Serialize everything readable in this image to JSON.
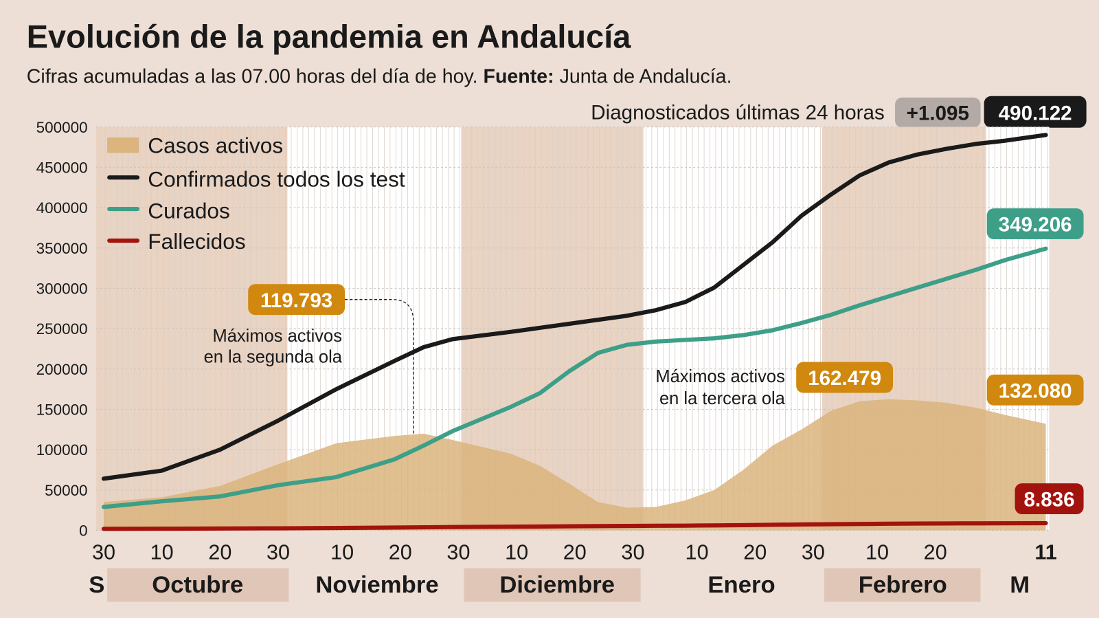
{
  "header": {
    "title": "Evolución de la pandemia en Andalucía",
    "subtitle_prefix": "Cifras acumuladas a las 07.00 horas del día de hoy.",
    "source_label": "Fuente:",
    "source_value": "Junta de Andalucía."
  },
  "diagnosed": {
    "label": "Diagnosticados últimas 24 horas",
    "delta": "+1.095",
    "total": "490.122"
  },
  "annotations": {
    "second_wave_value": "119.793",
    "second_wave_line1": "Máximos activos",
    "second_wave_line2": "en la segunda ola",
    "third_wave_value": "162.479",
    "third_wave_line1": "Máximos activos",
    "third_wave_line2": "en la tercera ola",
    "curados_last": "349.206",
    "activos_last": "132.080",
    "fallecidos_last": "8.836"
  },
  "colors": {
    "background": "#eddfd6",
    "plot_background": "#ffffff",
    "month_band": "#e9d3c3",
    "activos": "#dbb47e",
    "confirmados": "#1a1a1a",
    "curados": "#3d9f88",
    "fallecidos": "#a3130e",
    "label_orange": "#d0880f",
    "label_gray": "#b3aaa5"
  },
  "chart_data": {
    "type": "line",
    "title": "Evolución de la pandemia en Andalucía",
    "xlabel": "",
    "ylabel": "",
    "ylim": [
      0,
      500000
    ],
    "yticks": [
      "500000",
      "450000",
      "400000",
      "350000",
      "300000",
      "250000",
      "200000",
      "150000",
      "100000",
      "50000",
      "0"
    ],
    "xlim": [
      "09-30",
      "03-11"
    ],
    "xticks": [
      {
        "date": "09-30",
        "label": "30"
      },
      {
        "date": "10-10",
        "label": "10"
      },
      {
        "date": "10-20",
        "label": "20"
      },
      {
        "date": "10-30",
        "label": "30"
      },
      {
        "date": "11-10",
        "label": "10"
      },
      {
        "date": "11-20",
        "label": "20"
      },
      {
        "date": "11-30",
        "label": "30"
      },
      {
        "date": "12-10",
        "label": "10"
      },
      {
        "date": "12-20",
        "label": "20"
      },
      {
        "date": "12-30",
        "label": "30"
      },
      {
        "date": "01-10",
        "label": "10"
      },
      {
        "date": "01-20",
        "label": "20"
      },
      {
        "date": "01-30",
        "label": "30"
      },
      {
        "date": "02-10",
        "label": "10"
      },
      {
        "date": "02-20",
        "label": "20"
      },
      {
        "date": "03-11",
        "label": "11"
      }
    ],
    "months": [
      {
        "label": "S",
        "shaded": false
      },
      {
        "label": "Octubre",
        "shaded": true
      },
      {
        "label": "Noviembre",
        "shaded": false
      },
      {
        "label": "Diciembre",
        "shaded": true
      },
      {
        "label": "Enero",
        "shaded": false
      },
      {
        "label": "Febrero",
        "shaded": true
      },
      {
        "label": "M",
        "shaded": false
      }
    ],
    "grid": true,
    "legend_position": "top-left",
    "x": [
      "09-30",
      "10-10",
      "10-20",
      "10-30",
      "11-09",
      "11-19",
      "11-24",
      "11-29",
      "12-09",
      "12-14",
      "12-19",
      "12-24",
      "12-29",
      "01-03",
      "01-08",
      "01-13",
      "01-18",
      "01-23",
      "01-28",
      "02-02",
      "02-07",
      "02-12",
      "02-17",
      "02-22",
      "02-27",
      "03-04",
      "03-11"
    ],
    "series": [
      {
        "name": "Casos activos",
        "kind": "area",
        "color": "#dbb47e",
        "values": [
          35000,
          41000,
          55000,
          82000,
          108000,
          117000,
          119793,
          112000,
          95000,
          80000,
          58000,
          35000,
          28000,
          29000,
          37000,
          50000,
          75000,
          105000,
          125000,
          148000,
          160000,
          162479,
          161000,
          158000,
          152000,
          143000,
          132080
        ]
      },
      {
        "name": "Confirmados todos los test",
        "kind": "line",
        "color": "#1a1a1a",
        "values": [
          64000,
          74000,
          100000,
          136000,
          175000,
          210000,
          227000,
          237000,
          246000,
          251000,
          256000,
          261000,
          266000,
          273000,
          283000,
          301000,
          329000,
          357000,
          390000,
          416000,
          440000,
          456000,
          466000,
          473000,
          479000,
          483000,
          490122
        ]
      },
      {
        "name": "Curados",
        "kind": "line",
        "color": "#3d9f88",
        "values": [
          29000,
          36000,
          42000,
          56000,
          66000,
          88000,
          105000,
          123000,
          153000,
          170000,
          197000,
          220000,
          230000,
          234000,
          236000,
          238000,
          242000,
          248000,
          257000,
          267000,
          279000,
          290000,
          301000,
          312000,
          323000,
          335000,
          349206
        ]
      },
      {
        "name": "Fallecidos",
        "kind": "line",
        "color": "#a3130e",
        "values": [
          1800,
          2000,
          2200,
          2500,
          2900,
          3400,
          3700,
          4000,
          4500,
          4700,
          5000,
          5200,
          5400,
          5600,
          5800,
          6100,
          6400,
          6800,
          7200,
          7600,
          7900,
          8200,
          8400,
          8550,
          8650,
          8750,
          8836
        ]
      }
    ]
  }
}
